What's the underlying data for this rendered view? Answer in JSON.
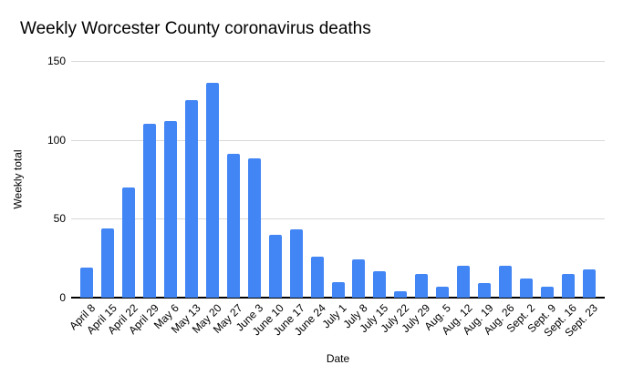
{
  "chart_data": {
    "type": "bar",
    "title": "Weekly Worcester County coronavirus deaths",
    "xlabel": "Date",
    "ylabel": "Weekly total",
    "categories": [
      "April 8",
      "April 15",
      "April 22",
      "April 29",
      "May 6",
      "May 13",
      "May 20",
      "May 27",
      "June 3",
      "June 10",
      "June 17",
      "June 24",
      "July 1",
      "July 8",
      "July 15",
      "July 22",
      "July 29",
      "Aug. 5",
      "Aug. 12",
      "Aug. 19",
      "Aug. 26",
      "Sept. 2",
      "Sept. 9",
      "Sept. 16",
      "Sept. 23"
    ],
    "values": [
      19,
      44,
      70,
      110,
      112,
      125,
      136,
      91,
      88,
      40,
      43,
      26,
      10,
      24,
      17,
      4,
      15,
      7,
      20,
      9,
      20,
      12,
      7,
      15,
      18
    ],
    "ylim": [
      0,
      150
    ],
    "yticks": [
      0,
      50,
      100,
      150
    ],
    "grid": true,
    "legend_position": "none",
    "bar_color": "#4285f4",
    "gridline_color": "#d9d9d9",
    "axis_color": "#000000",
    "text_color": "#000000",
    "background_color": "#ffffff"
  }
}
